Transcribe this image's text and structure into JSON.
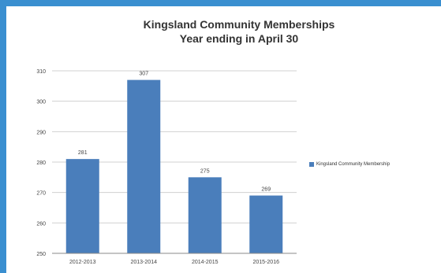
{
  "chart_data": {
    "type": "bar",
    "title_lines": [
      "Kingsland Community Memberships",
      "Year ending in April 30"
    ],
    "categories": [
      "2012-2013",
      "2013-2014",
      "2014-2015",
      "2015-2016"
    ],
    "series": [
      {
        "name": "Kingsland Community Membership",
        "values": [
          281,
          307,
          275,
          269
        ]
      }
    ],
    "ylim": [
      250,
      310
    ],
    "yticks": [
      250,
      260,
      270,
      280,
      290,
      300,
      310
    ],
    "grid": true,
    "legend_position": "right",
    "bar_color": "#4a7ebb",
    "xlabel": "",
    "ylabel": ""
  }
}
